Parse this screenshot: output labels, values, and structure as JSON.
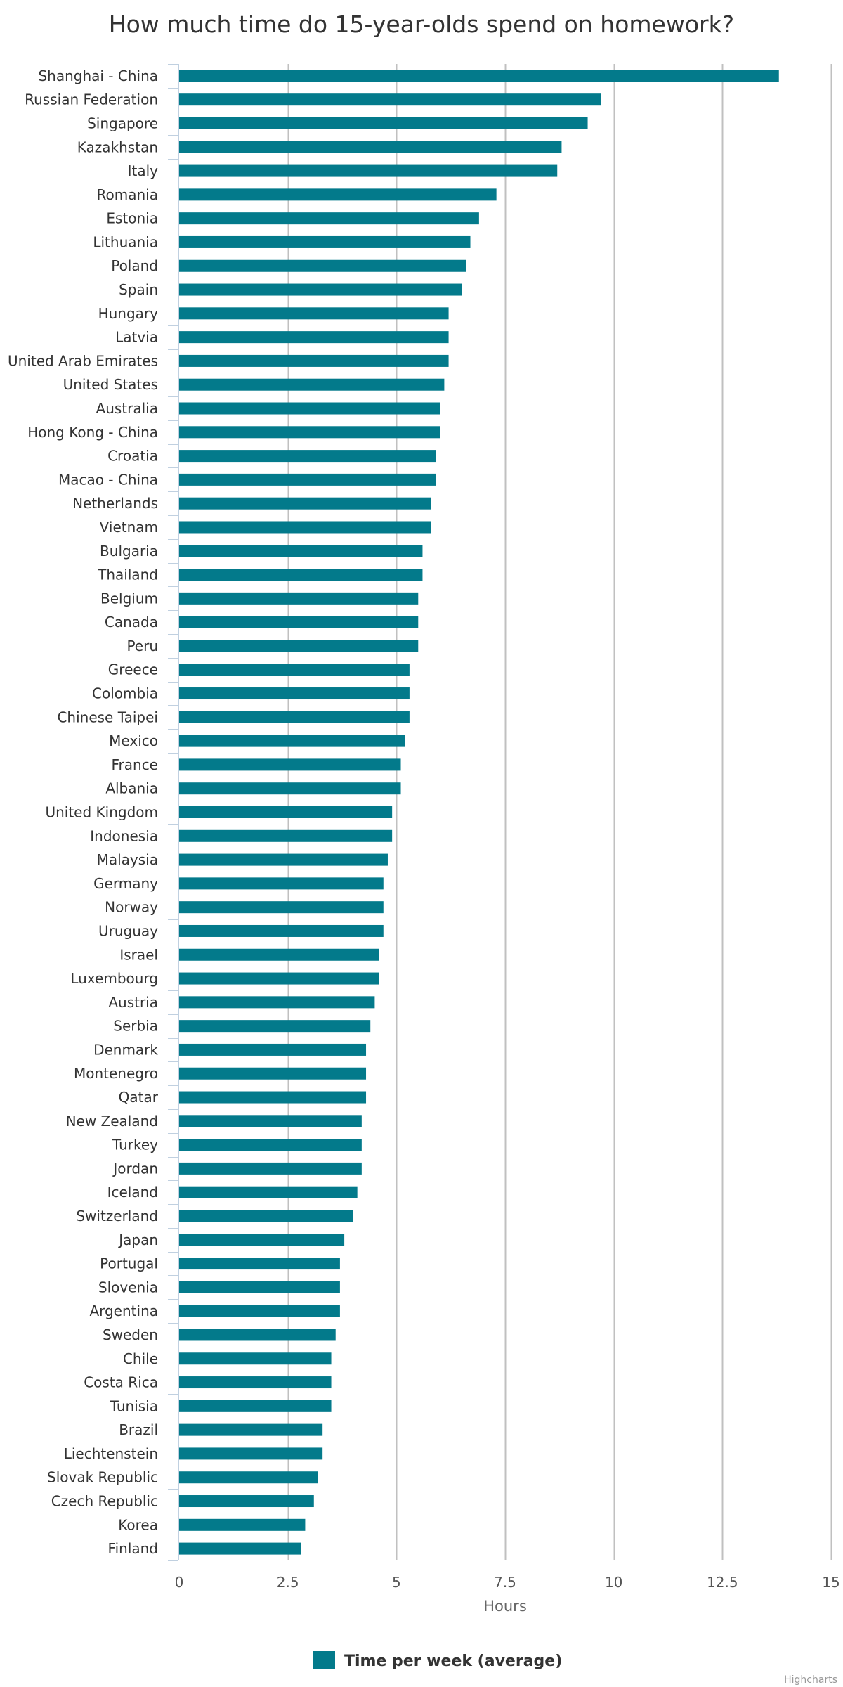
{
  "chart_data": {
    "type": "bar",
    "orientation": "horizontal",
    "title": "How much time do 15-year-olds spend on homework?",
    "xlabel": "Hours",
    "ylabel": "",
    "xlim": [
      0,
      15
    ],
    "ticks": [
      "0",
      "2.5",
      "5",
      "7.5",
      "10",
      "12.5",
      "15"
    ],
    "tick_values": [
      0,
      2.5,
      5,
      7.5,
      10,
      12.5,
      15
    ],
    "grid": true,
    "legend_position": "bottom",
    "bar_color": "#037a8b",
    "categories": [
      "Shanghai - China",
      "Russian Federation",
      "Singapore",
      "Kazakhstan",
      "Italy",
      "Romania",
      "Estonia",
      "Lithuania",
      "Poland",
      "Spain",
      "Hungary",
      "Latvia",
      "United Arab Emirates",
      "United States",
      "Australia",
      "Hong Kong - China",
      "Croatia",
      "Macao - China",
      "Netherlands",
      "Vietnam",
      "Bulgaria",
      "Thailand",
      "Belgium",
      "Canada",
      "Peru",
      "Greece",
      "Colombia",
      "Chinese Taipei",
      "Mexico",
      "France",
      "Albania",
      "United Kingdom",
      "Indonesia",
      "Malaysia",
      "Germany",
      "Norway",
      "Uruguay",
      "Israel",
      "Luxembourg",
      "Austria",
      "Serbia",
      "Denmark",
      "Montenegro",
      "Qatar",
      "New Zealand",
      "Turkey",
      "Jordan",
      "Iceland",
      "Switzerland",
      "Japan",
      "Portugal",
      "Slovenia",
      "Argentina",
      "Sweden",
      "Chile",
      "Costa Rica",
      "Tunisia",
      "Brazil",
      "Liechtenstein",
      "Slovak Republic",
      "Czech Republic",
      "Korea",
      "Finland"
    ],
    "series": [
      {
        "name": "Time per week (average)",
        "values": [
          13.8,
          9.7,
          9.4,
          8.8,
          8.7,
          7.3,
          6.9,
          6.7,
          6.6,
          6.5,
          6.2,
          6.2,
          6.2,
          6.1,
          6.0,
          6.0,
          5.9,
          5.9,
          5.8,
          5.8,
          5.6,
          5.6,
          5.5,
          5.5,
          5.5,
          5.3,
          5.3,
          5.3,
          5.2,
          5.1,
          5.1,
          4.9,
          4.9,
          4.8,
          4.7,
          4.7,
          4.7,
          4.6,
          4.6,
          4.5,
          4.4,
          4.3,
          4.3,
          4.3,
          4.2,
          4.2,
          4.2,
          4.1,
          4.0,
          3.8,
          3.7,
          3.7,
          3.7,
          3.6,
          3.5,
          3.5,
          3.5,
          3.3,
          3.3,
          3.2,
          3.1,
          2.9,
          2.8
        ]
      }
    ]
  },
  "credit": "Highcharts"
}
